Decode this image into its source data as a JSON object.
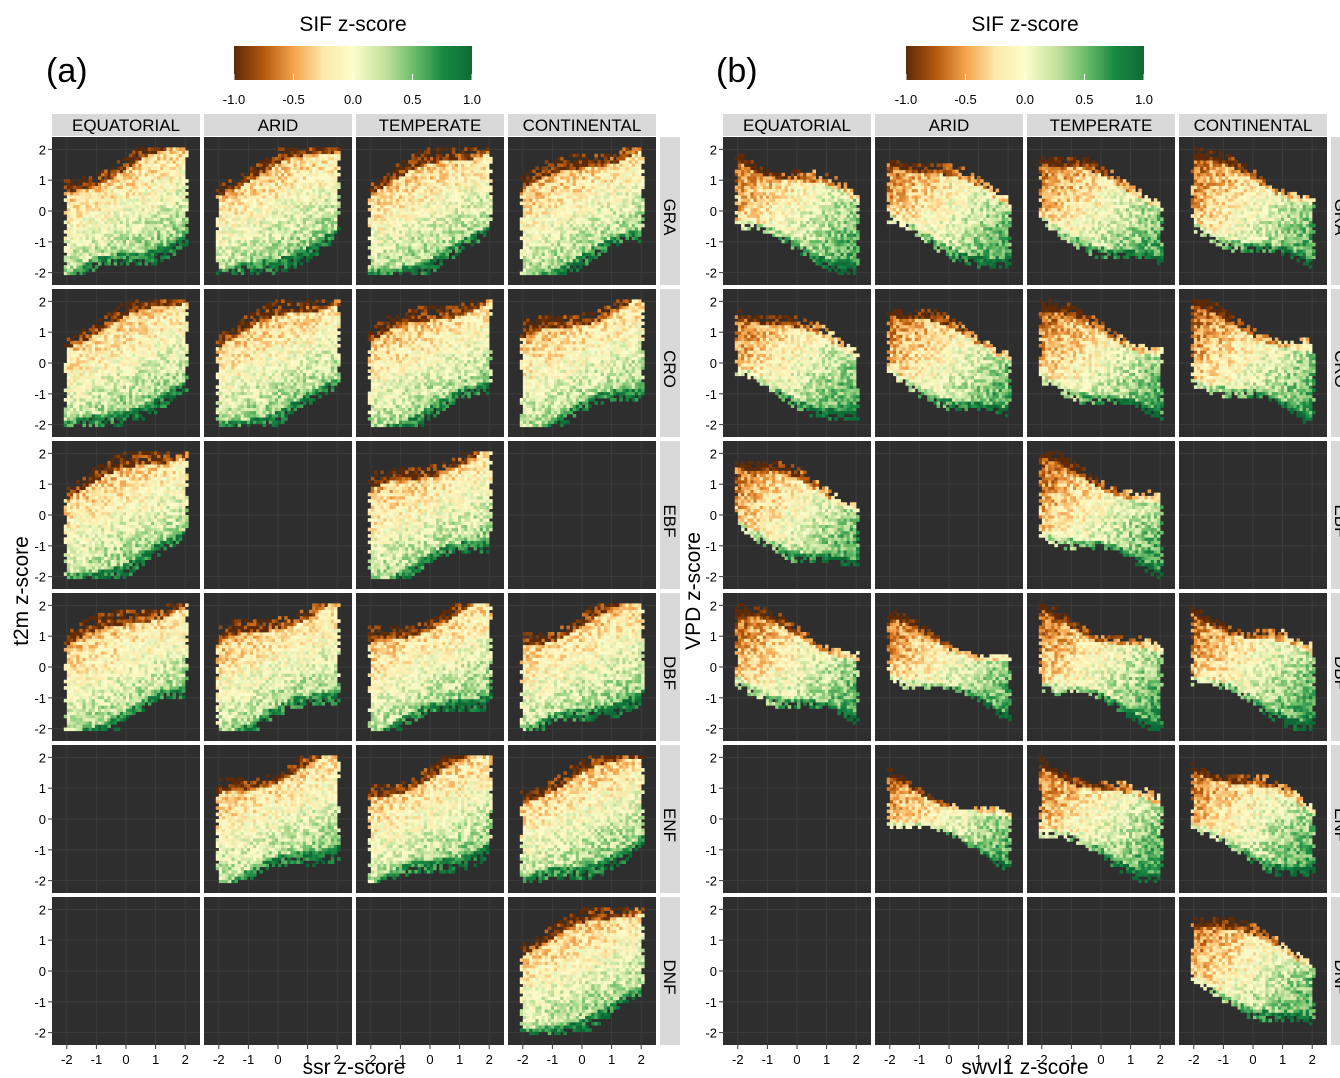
{
  "chart_data": [
    {
      "type": "heatmap",
      "panel_label": "(a)",
      "legend_title": "SIF z-score",
      "legend_ticks": [
        "-1.0",
        "-0.5",
        "0.0",
        "0.5",
        "1.0"
      ],
      "legend_range": [
        -1,
        1
      ],
      "legend_colors": [
        "#5c2a08",
        "#b4580c",
        "#f4a34c",
        "#fde9a8",
        "#fdfdcc",
        "#c8e4a0",
        "#6fbf6a",
        "#1a8a44",
        "#0d6a36"
      ],
      "columns": [
        "EQUATORIAL",
        "ARID",
        "TEMPERATE",
        "CONTINENTAL"
      ],
      "rows": [
        "GRA",
        "CRO",
        "EBF",
        "DBF",
        "ENF",
        "DNF"
      ],
      "xlabel": "ssr z-score",
      "ylabel": "t2m z-score",
      "x_ticks": [
        "-2",
        "-1",
        "0",
        "1",
        "2"
      ],
      "y_ticks": [
        "2",
        "1",
        "0",
        "-1",
        "-2"
      ],
      "xlim": [
        -2.5,
        2.5
      ],
      "ylim": [
        -2.4,
        2.4
      ],
      "panel_background": "#2e2e2e",
      "grid": true,
      "present": [
        [
          1,
          1,
          1,
          1
        ],
        [
          1,
          1,
          1,
          1
        ],
        [
          1,
          0,
          1,
          0
        ],
        [
          1,
          1,
          1,
          1
        ],
        [
          0,
          1,
          1,
          1
        ],
        [
          0,
          0,
          0,
          1
        ]
      ]
    },
    {
      "type": "heatmap",
      "panel_label": "(b)",
      "legend_title": "SIF z-score",
      "legend_ticks": [
        "-1.0",
        "-0.5",
        "0.0",
        "0.5",
        "1.0"
      ],
      "legend_range": [
        -1,
        1
      ],
      "legend_colors": [
        "#5c2a08",
        "#b4580c",
        "#f4a34c",
        "#fde9a8",
        "#fdfdcc",
        "#c8e4a0",
        "#6fbf6a",
        "#1a8a44",
        "#0d6a36"
      ],
      "columns": [
        "EQUATORIAL",
        "ARID",
        "TEMPERATE",
        "CONTINENTAL"
      ],
      "rows": [
        "GRA",
        "CRO",
        "EBF",
        "DBF",
        "ENF",
        "DNF"
      ],
      "xlabel": "swvl1 z-score",
      "ylabel": "VPD z-score",
      "x_ticks": [
        "-2",
        "-1",
        "0",
        "1",
        "2"
      ],
      "y_ticks": [
        "2",
        "1",
        "0",
        "-1",
        "-2"
      ],
      "xlim": [
        -2.5,
        2.5
      ],
      "ylim": [
        -2.4,
        2.4
      ],
      "panel_background": "#2e2e2e",
      "grid": true,
      "present": [
        [
          1,
          1,
          1,
          1
        ],
        [
          1,
          1,
          1,
          1
        ],
        [
          1,
          0,
          1,
          0
        ],
        [
          1,
          1,
          1,
          1
        ],
        [
          0,
          1,
          1,
          1
        ],
        [
          0,
          0,
          0,
          1
        ]
      ]
    }
  ]
}
